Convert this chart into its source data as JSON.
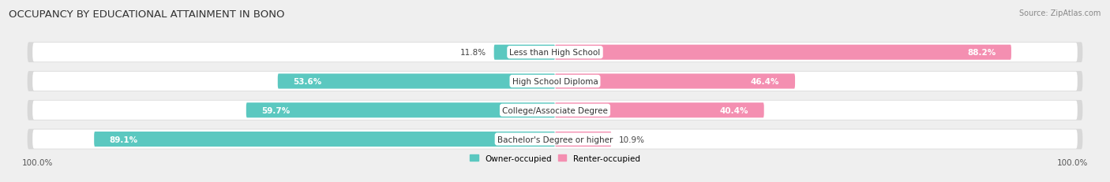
{
  "title": "OCCUPANCY BY EDUCATIONAL ATTAINMENT IN BONO",
  "source": "Source: ZipAtlas.com",
  "categories": [
    "Less than High School",
    "High School Diploma",
    "College/Associate Degree",
    "Bachelor's Degree or higher"
  ],
  "owner_pct": [
    11.8,
    53.6,
    59.7,
    89.1
  ],
  "renter_pct": [
    88.2,
    46.4,
    40.4,
    10.9
  ],
  "owner_color": "#5bc8c0",
  "renter_color": "#f48fb1",
  "bg_color": "#efefef",
  "row_bg": "#ffffff",
  "row_shadow": "#d8d8d8",
  "bar_height": 0.52,
  "title_fontsize": 9.5,
  "label_fontsize": 7.5,
  "value_fontsize": 7.5,
  "tick_label": "100.0%",
  "legend_owner": "Owner-occupied",
  "legend_renter": "Renter-occupied"
}
